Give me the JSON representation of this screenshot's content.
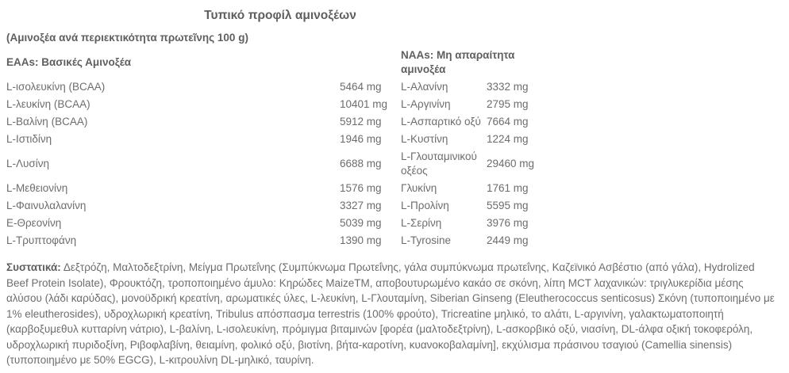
{
  "page": {
    "title": "Τυπικό προφίλ αμινοξέων",
    "subtitle": "(Αμινοξέα ανά περιεκτικότητα πρωτεῖνης 100 g)"
  },
  "table": {
    "eaa_header": "EAAs: Βασικές Αμινοξέα",
    "naa_header": "NAAs: Μη απαραίτητα αμινοξέα",
    "unit": "mg",
    "rows": [
      {
        "eaa": "L-ισολευκίνη (BCAA)",
        "eaa_mg": "5464 mg",
        "naa": "L-Αλανίνη",
        "naa_mg": "3332 mg"
      },
      {
        "eaa": "L-λευκίνη (BCAA)",
        "eaa_mg": "10401 mg",
        "naa": "L-Αργινίνη",
        "naa_mg": "2795 mg"
      },
      {
        "eaa": "L-Βαλίνη (BCAA)",
        "eaa_mg": "5912 mg",
        "naa": "L-Ασπαρτικό οξύ",
        "naa_mg": "7664 mg"
      },
      {
        "eaa": "L-Ιστιδίνη",
        "eaa_mg": "1946 mg",
        "naa": "L-Κυστίνη",
        "naa_mg": "1224 mg"
      },
      {
        "eaa": "L-Λυσίνη",
        "eaa_mg": "6688 mg",
        "naa": "L-Γλουταμινικού οξέος",
        "naa_mg": "29460 mg"
      },
      {
        "eaa": "L-Μεθειονίνη",
        "eaa_mg": "1576 mg",
        "naa": "Γλυκίνη",
        "naa_mg": "1761 mg"
      },
      {
        "eaa": "L-Φαινυλαλανίνη",
        "eaa_mg": "3327 mg",
        "naa": "L-Προλίνη",
        "naa_mg": "5595 mg"
      },
      {
        "eaa": "Ε-Θρεονίνη",
        "eaa_mg": "5039 mg",
        "naa": "L-Σερίνη",
        "naa_mg": "3976 mg"
      },
      {
        "eaa": "L-Τρυπτοφάνη",
        "eaa_mg": "1390 mg",
        "naa": "L-Tyrosine",
        "naa_mg": "2449 mg"
      }
    ]
  },
  "ingredients": {
    "label": "Συστατικά:",
    "text": "Δεξτρόζη, Μαλτοδεξτρίνη, Μείγμα Πρωτεΐνης (Συμπύκνωμα Πρωτεΐνης, γάλα συμπύκνωμα πρωτεΐνης, Καζεϊνικό Ασβέστιο (από γάλα), Hydrolized Beef Protein Isolate), Φρουκτόζη, τροποποιημένο άμυλο: Κηρώδες MaizeTM, αποβουτυρωμένο κακάο σε σκόνη, λίπη MCT λαχανικών: τριγλυκερίδια μέσης αλύσου (λάδι καρύδας), μονοϋδρική κρεατίνη, αρωματικές ύλες, L-λευκίνη, L-Γλουταμίνη, Siberian Ginseng (Eleutherococcus senticosus) Σκόνη (τυποποιημένο με 1% eleutherosides), υδροχλωρική κρεατίνη, Tribulus απόσπασμα terrestris (100% φρούτο), Tricreatine μηλικό, το αλάτι, L-αργινίνη, γαλακτωματοποιητή (καρβοξυμεθυλ κυτταρίνη νάτριο), L-βαλίνη, L-ισολευκίνη, πρόμιγμα βιταμινών [φορέα (μαλτοδεξτρίνη), L-ασκορβικό οξύ, νιασίνη, DL-άλφα οξική τοκοφερόλη, υδροχλωρική πυριδοξίνη, Ριβοφλαβίνη, θειαμίνη, φολικό οξύ, βιοτίνη, βήτα-καροτίνη, κυανοκοβαλαμίνη], εκχύλισμα πράσινου τσαγιού (Camellia sinensis) (τυποποιημένο με 50% EGCG), L-κιτρουλίνη DL-μηλικό, ταυρίνη."
  },
  "colors": {
    "text": "#6d6d6d",
    "heading": "#5f5f5f",
    "background": "#ffffff"
  }
}
